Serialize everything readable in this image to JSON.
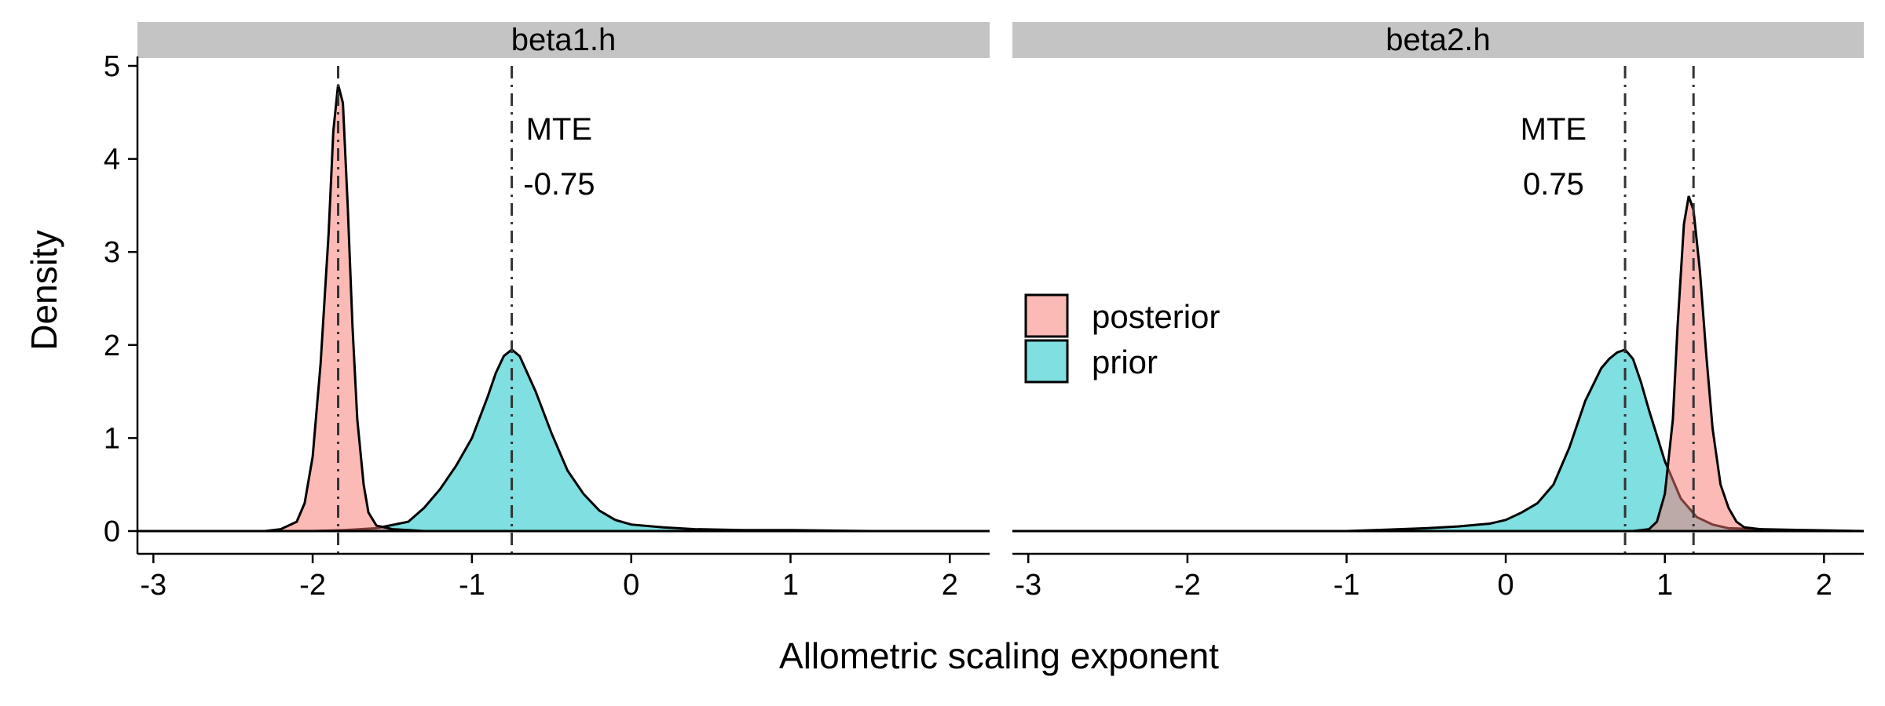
{
  "chart_data": {
    "type": "area",
    "xlabel": "Allometric scaling exponent",
    "ylabel": "Density",
    "xlim": [
      -3.1,
      2.25
    ],
    "ylim": [
      0,
      5
    ],
    "x_ticks": [
      -3,
      -2,
      -1,
      0,
      1,
      2
    ],
    "y_ticks": [
      0,
      1,
      2,
      3,
      4,
      5
    ],
    "grid": false,
    "legend": {
      "placement": "center-between-panels",
      "entries": [
        {
          "name": "posterior",
          "color": "#F8766D"
        },
        {
          "name": "prior",
          "color": "#00BFC4"
        }
      ]
    },
    "panels": [
      {
        "strip_label": "beta1.h",
        "annotation": {
          "line1": "MTE",
          "line2": "-0.75",
          "x": -0.65
        },
        "reference_lines": [
          -1.84,
          -0.75
        ],
        "series": [
          {
            "name": "posterior",
            "x": [
              -3.1,
              -2.3,
              -2.2,
              -2.1,
              -2.05,
              -2.0,
              -1.95,
              -1.9,
              -1.87,
              -1.84,
              -1.81,
              -1.78,
              -1.75,
              -1.72,
              -1.68,
              -1.65,
              -1.6,
              -1.5,
              -1.4,
              -1.3,
              -1.2,
              2.25
            ],
            "y": [
              0,
              0,
              0.02,
              0.1,
              0.3,
              0.8,
              1.8,
              3.2,
              4.3,
              4.8,
              4.6,
              3.5,
              2.2,
              1.2,
              0.5,
              0.2,
              0.06,
              0.02,
              0.01,
              0,
              0,
              0
            ]
          },
          {
            "name": "prior",
            "x": [
              -3.1,
              -2.0,
              -1.8,
              -1.6,
              -1.4,
              -1.3,
              -1.2,
              -1.1,
              -1.0,
              -0.9,
              -0.85,
              -0.8,
              -0.75,
              -0.7,
              -0.6,
              -0.5,
              -0.4,
              -0.3,
              -0.2,
              -0.1,
              0.0,
              0.2,
              0.4,
              0.7,
              1.0,
              1.5,
              2.25
            ],
            "y": [
              0,
              0,
              0.01,
              0.03,
              0.1,
              0.25,
              0.45,
              0.7,
              1.0,
              1.45,
              1.7,
              1.88,
              1.95,
              1.88,
              1.5,
              1.05,
              0.65,
              0.4,
              0.22,
              0.12,
              0.07,
              0.04,
              0.02,
              0.01,
              0.01,
              0,
              0
            ]
          }
        ]
      },
      {
        "strip_label": "beta2.h",
        "annotation": {
          "line1": "MTE",
          "line2": "0.75",
          "x": 0.3
        },
        "reference_lines": [
          0.75,
          1.18
        ],
        "series": [
          {
            "name": "posterior",
            "x": [
              -3.1,
              0.8,
              0.9,
              0.95,
              1.0,
              1.05,
              1.08,
              1.12,
              1.15,
              1.18,
              1.22,
              1.26,
              1.3,
              1.35,
              1.4,
              1.45,
              1.5,
              1.6,
              1.7,
              2.25
            ],
            "y": [
              0,
              0,
              0.02,
              0.1,
              0.4,
              1.2,
              2.2,
              3.3,
              3.6,
              3.45,
              2.8,
              1.9,
              1.1,
              0.5,
              0.25,
              0.1,
              0.04,
              0.02,
              0,
              0
            ]
          },
          {
            "name": "prior",
            "x": [
              -3.1,
              -1.0,
              -0.5,
              -0.3,
              -0.1,
              0.0,
              0.1,
              0.2,
              0.3,
              0.4,
              0.5,
              0.6,
              0.65,
              0.7,
              0.75,
              0.8,
              0.85,
              0.9,
              1.0,
              1.1,
              1.2,
              1.3,
              1.4,
              1.6,
              1.9,
              2.25
            ],
            "y": [
              0,
              0,
              0.03,
              0.05,
              0.08,
              0.12,
              0.2,
              0.3,
              0.5,
              0.9,
              1.4,
              1.75,
              1.85,
              1.92,
              1.95,
              1.85,
              1.6,
              1.3,
              0.75,
              0.35,
              0.15,
              0.07,
              0.03,
              0.02,
              0.01,
              0
            ]
          }
        ]
      }
    ]
  }
}
